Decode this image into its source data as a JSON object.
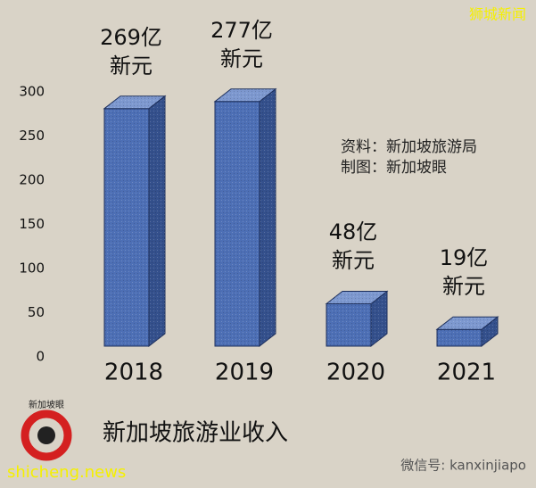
{
  "chart_data": {
    "type": "bar3d",
    "title": "新加坡旅游业收入",
    "categories": [
      "2018",
      "2019",
      "2020",
      "2021"
    ],
    "values": [
      269,
      277,
      48,
      19
    ],
    "value_labels": [
      "269亿\n新元",
      "277亿\n新元",
      "48亿\n新元",
      "19亿\n新元"
    ],
    "color": "#4d6fb5",
    "ylim": [
      0,
      300
    ],
    "yticks": [
      0,
      50,
      100,
      150,
      200,
      250,
      300
    ],
    "annotations": [
      "资料：新加坡旅游局",
      "制图：新加坡眼"
    ],
    "watermarks": [
      "狮城新闻",
      "新加坡眼",
      "shicheng.news",
      "微信号: kanxinjiapo"
    ]
  }
}
